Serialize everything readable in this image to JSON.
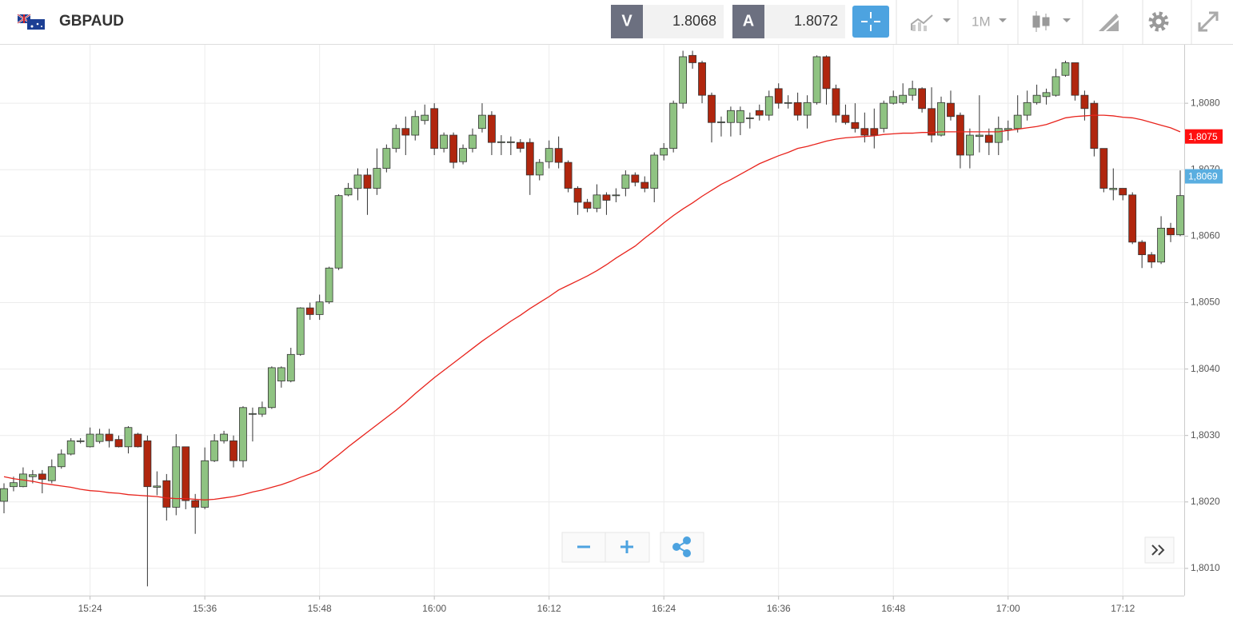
{
  "header": {
    "symbol": "GBPAUD",
    "bid_label": "V",
    "bid": 1.8068,
    "ask_label": "A",
    "ask": 1.8072,
    "timeframe": "1M"
  },
  "chart_data": {
    "type": "candlestick",
    "categories": [
      null,
      null,
      null,
      null,
      null,
      null,
      null,
      null,
      null,
      "15:24",
      null,
      null,
      null,
      null,
      null,
      null,
      null,
      null,
      null,
      null,
      null,
      "15:36",
      null,
      null,
      null,
      null,
      null,
      null,
      null,
      null,
      null,
      null,
      null,
      "15:48",
      null,
      null,
      null,
      null,
      null,
      null,
      null,
      null,
      null,
      null,
      null,
      "16:00",
      null,
      null,
      null,
      null,
      null,
      null,
      null,
      null,
      null,
      null,
      null,
      "16:12",
      null,
      null,
      null,
      null,
      null,
      null,
      null,
      null,
      null,
      null,
      null,
      "16:24",
      null,
      null,
      null,
      null,
      null,
      null,
      null,
      null,
      null,
      null,
      null,
      "16:36",
      null,
      null,
      null,
      null,
      null,
      null,
      null,
      null,
      null,
      null,
      null,
      "16:48",
      null,
      null,
      null,
      null,
      null,
      null,
      null,
      null,
      null,
      null,
      null,
      "17:00",
      null,
      null,
      null,
      null,
      null,
      null,
      null,
      null,
      null,
      null,
      null,
      "17:12",
      null,
      null,
      null,
      null,
      null,
      null
    ],
    "open": [
      1.80201,
      1.80223,
      1.80223,
      1.80238,
      1.80242,
      1.80232,
      1.80253,
      1.80272,
      1.80291,
      1.80283,
      1.80291,
      1.80302,
      1.80294,
      1.80283,
      1.80302,
      1.80292,
      1.80222,
      1.80232,
      1.80192,
      1.80283,
      1.80202,
      1.80192,
      1.80262,
      1.80292,
      1.80292,
      1.80262,
      1.80332,
      1.80332,
      1.80342,
      1.80382,
      1.80382,
      1.80422,
      1.80492,
      1.80482,
      1.80501,
      1.80552,
      1.80662,
      1.80672,
      1.80692,
      1.80672,
      1.80702,
      1.80732,
      1.80762,
      1.80752,
      1.80774,
      1.80792,
      1.80732,
      1.80752,
      1.80712,
      1.80732,
      1.80762,
      1.80782,
      1.80741,
      1.80741,
      1.80741,
      1.80741,
      1.80692,
      1.80712,
      1.80732,
      1.80711,
      1.80672,
      1.80651,
      1.80642,
      1.80662,
      1.80661,
      1.80672,
      1.80692,
      1.80681,
      1.80672,
      1.80722,
      1.80732,
      1.808,
      1.80872,
      1.80861,
      1.80812,
      1.80771,
      1.80771,
      1.80771,
      1.80777,
      1.80789,
      1.80782,
      1.80822,
      1.808,
      1.80801,
      1.80782,
      1.80801,
      1.8087,
      1.80822,
      1.80782,
      1.80771,
      1.80762,
      1.80762,
      1.80762,
      1.808,
      1.80801,
      1.80812,
      1.80822,
      1.80792,
      1.80752,
      1.808,
      1.80782,
      1.80722,
      1.8075,
      1.80752,
      1.80741,
      1.8076,
      1.80762,
      1.80782,
      1.80801,
      1.8081,
      1.80812,
      1.80842,
      1.80861,
      1.80812,
      1.808,
      1.80732,
      1.8067,
      1.80672,
      1.80662,
      1.80591,
      1.80572,
      1.80561,
      1.80612,
      1.80602
    ],
    "high": [
      1.80228,
      1.80238,
      1.80252,
      1.80248,
      1.80248,
      1.80264,
      1.80279,
      1.80296,
      1.80296,
      1.80312,
      1.8031,
      1.8031,
      1.803,
      1.80314,
      1.80304,
      1.803,
      1.80246,
      1.80242,
      1.80302,
      1.80283,
      1.80212,
      1.80282,
      1.80302,
      1.80307,
      1.803,
      1.80344,
      1.80342,
      1.80351,
      1.80404,
      1.80404,
      1.80432,
      1.80493,
      1.805,
      1.80512,
      1.80554,
      1.80663,
      1.8068,
      1.80702,
      1.80702,
      1.80732,
      1.80738,
      1.80768,
      1.8078,
      1.80789,
      1.80798,
      1.808,
      1.80756,
      1.80756,
      1.80738,
      1.80762,
      1.808,
      1.80788,
      1.80752,
      1.8075,
      1.80746,
      1.80747,
      1.80716,
      1.80744,
      1.8075,
      1.80714,
      1.80675,
      1.80656,
      1.80678,
      1.80666,
      1.80672,
      1.80699,
      1.80696,
      1.8069,
      1.80726,
      1.8074,
      1.80804,
      1.80879,
      1.80879,
      1.80864,
      1.80816,
      1.8078,
      1.80795,
      1.80795,
      1.80786,
      1.80798,
      1.80819,
      1.8083,
      1.80812,
      1.80816,
      1.80812,
      1.80872,
      1.80872,
      1.80828,
      1.80798,
      1.808,
      1.80786,
      1.80792,
      1.80804,
      1.80819,
      1.8083,
      1.80834,
      1.80824,
      1.80824,
      1.8081,
      1.80819,
      1.80786,
      1.80762,
      1.80812,
      1.80762,
      1.8078,
      1.80774,
      1.80812,
      1.80819,
      1.80828,
      1.80822,
      1.80852,
      1.80864,
      1.80861,
      1.80819,
      1.80804,
      1.80732,
      1.80702,
      1.80672,
      1.80666,
      1.80594,
      1.80576,
      1.8063,
      1.8062,
      1.80699
    ],
    "low": [
      1.80183,
      1.80216,
      1.80222,
      1.80228,
      1.80213,
      1.80228,
      1.8025,
      1.8027,
      1.80288,
      1.80282,
      1.80288,
      1.80282,
      1.80282,
      1.80273,
      1.80282,
      1.80073,
      1.8021,
      1.80172,
      1.8018,
      1.80189,
      1.80152,
      1.80189,
      1.8026,
      1.80288,
      1.80252,
      1.80252,
      1.80291,
      1.80328,
      1.8034,
      1.80372,
      1.8038,
      1.8042,
      1.80474,
      1.80474,
      1.80498,
      1.80549,
      1.8066,
      1.80654,
      1.80632,
      1.80662,
      1.80696,
      1.80726,
      1.80722,
      1.80744,
      1.80768,
      1.80722,
      1.80726,
      1.80702,
      1.80708,
      1.80726,
      1.80756,
      1.80722,
      1.80722,
      1.80722,
      1.80726,
      1.80662,
      1.80684,
      1.80702,
      1.80702,
      1.80666,
      1.80632,
      1.80636,
      1.80636,
      1.80632,
      1.80651,
      1.8066,
      1.80675,
      1.80666,
      1.80651,
      1.80714,
      1.80726,
      1.80792,
      1.80852,
      1.808,
      1.80741,
      1.8075,
      1.8075,
      1.80752,
      1.80762,
      1.80774,
      1.80774,
      1.80792,
      1.80792,
      1.80774,
      1.80762,
      1.80798,
      1.80798,
      1.80771,
      1.80768,
      1.80756,
      1.80741,
      1.80732,
      1.80756,
      1.80798,
      1.80798,
      1.80804,
      1.80786,
      1.80741,
      1.8075,
      1.80774,
      1.80702,
      1.80702,
      1.80726,
      1.80722,
      1.80722,
      1.80744,
      1.80756,
      1.80774,
      1.80798,
      1.80798,
      1.8081,
      1.8084,
      1.80804,
      1.80774,
      1.8072,
      1.80666,
      1.80654,
      1.80654,
      1.80588,
      1.80552,
      1.80552,
      1.80558,
      1.80591,
      1.806
    ],
    "close": [
      1.8022,
      1.80229,
      1.80242,
      1.80241,
      1.80234,
      1.80253,
      1.80272,
      1.80292,
      1.80292,
      1.80302,
      1.80302,
      1.80292,
      1.80283,
      1.80312,
      1.80283,
      1.80223,
      1.80224,
      1.80192,
      1.80283,
      1.80202,
      1.80192,
      1.80262,
      1.80292,
      1.80302,
      1.80262,
      1.80342,
      1.80333,
      1.80342,
      1.80402,
      1.80402,
      1.80422,
      1.80492,
      1.80482,
      1.80501,
      1.80552,
      1.80661,
      1.80672,
      1.80692,
      1.80672,
      1.80702,
      1.80732,
      1.80762,
      1.80752,
      1.8078,
      1.80782,
      1.80732,
      1.80752,
      1.80711,
      1.80732,
      1.80752,
      1.80782,
      1.80741,
      1.80742,
      1.80742,
      1.80732,
      1.80692,
      1.80711,
      1.80732,
      1.80711,
      1.80672,
      1.80651,
      1.80642,
      1.80662,
      1.80654,
      1.80662,
      1.80692,
      1.80681,
      1.80672,
      1.80722,
      1.80732,
      1.808,
      1.8087,
      1.80861,
      1.80812,
      1.80771,
      1.80772,
      1.80789,
      1.80789,
      1.80778,
      1.80782,
      1.8081,
      1.808,
      1.80801,
      1.80782,
      1.80801,
      1.8087,
      1.80822,
      1.80782,
      1.80771,
      1.80762,
      1.80752,
      1.80752,
      1.808,
      1.8081,
      1.80812,
      1.80822,
      1.80792,
      1.80752,
      1.80801,
      1.8078,
      1.80722,
      1.80752,
      1.80752,
      1.80741,
      1.80762,
      1.80762,
      1.80782,
      1.80801,
      1.80812,
      1.80816,
      1.8084,
      1.80861,
      1.80812,
      1.80792,
      1.80732,
      1.80672,
      1.80672,
      1.80662,
      1.80591,
      1.80572,
      1.80561,
      1.80612,
      1.80602,
      1.80661
    ],
    "up_color": "#8fc382",
    "down_color": "#b0260e",
    "overlays": [
      {
        "type": "line",
        "color": "#e8231c",
        "values": [
          1.80238,
          1.80235,
          1.80233,
          1.80231,
          1.80228,
          1.80226,
          1.80224,
          1.80222,
          1.80219,
          1.80217,
          1.80216,
          1.80214,
          1.80213,
          1.80211,
          1.8021,
          1.80209,
          1.80208,
          1.80206,
          1.80205,
          1.80205,
          1.80204,
          1.80203,
          1.80204,
          1.80206,
          1.80208,
          1.80211,
          1.80215,
          1.80218,
          1.80222,
          1.80226,
          1.80231,
          1.80237,
          1.80242,
          1.80248,
          1.8026,
          1.80271,
          1.80283,
          1.80294,
          1.80305,
          1.80316,
          1.80327,
          1.80338,
          1.8035,
          1.80363,
          1.80375,
          1.80387,
          1.80398,
          1.80409,
          1.8042,
          1.80431,
          1.80442,
          1.80452,
          1.80462,
          1.80472,
          1.80481,
          1.80491,
          1.805,
          1.80509,
          1.80519,
          1.80526,
          1.80533,
          1.8054,
          1.80548,
          1.80557,
          1.80567,
          1.80576,
          1.80585,
          1.80597,
          1.80608,
          1.8062,
          1.80631,
          1.80641,
          1.8065,
          1.8066,
          1.80669,
          1.80678,
          1.80685,
          1.80693,
          1.80701,
          1.80709,
          1.80715,
          1.80721,
          1.80726,
          1.80732,
          1.80735,
          1.80739,
          1.80743,
          1.80746,
          1.80748,
          1.80749,
          1.8075,
          1.80751,
          1.80753,
          1.80754,
          1.80755,
          1.80755,
          1.80756,
          1.80756,
          1.80757,
          1.80757,
          1.80757,
          1.80757,
          1.80757,
          1.80757,
          1.80757,
          1.80759,
          1.80761,
          1.80763,
          1.80765,
          1.80768,
          1.80773,
          1.80778,
          1.8078,
          1.80781,
          1.80782,
          1.80782,
          1.80781,
          1.80779,
          1.80778,
          1.80775,
          1.80771,
          1.80767,
          1.80763,
          1.80757
        ]
      }
    ],
    "price_tags": [
      {
        "value": 1.8075,
        "label": "1,8075",
        "color": "#ff1010"
      },
      {
        "value": 1.8069,
        "label": "1,8069",
        "color": "#5aaee0"
      }
    ],
    "ylim": [
      1.80059,
      1.80888
    ],
    "yticks": [
      {
        "value": 1.801,
        "label": "1,8010"
      },
      {
        "value": 1.802,
        "label": "1,8020"
      },
      {
        "value": 1.803,
        "label": "1,8030"
      },
      {
        "value": 1.804,
        "label": "1,8040"
      },
      {
        "value": 1.805,
        "label": "1,8050"
      },
      {
        "value": 1.806,
        "label": "1,8060"
      },
      {
        "value": 1.807,
        "label": "1,8070"
      },
      {
        "value": 1.808,
        "label": "1,8080"
      }
    ],
    "grid": true
  }
}
